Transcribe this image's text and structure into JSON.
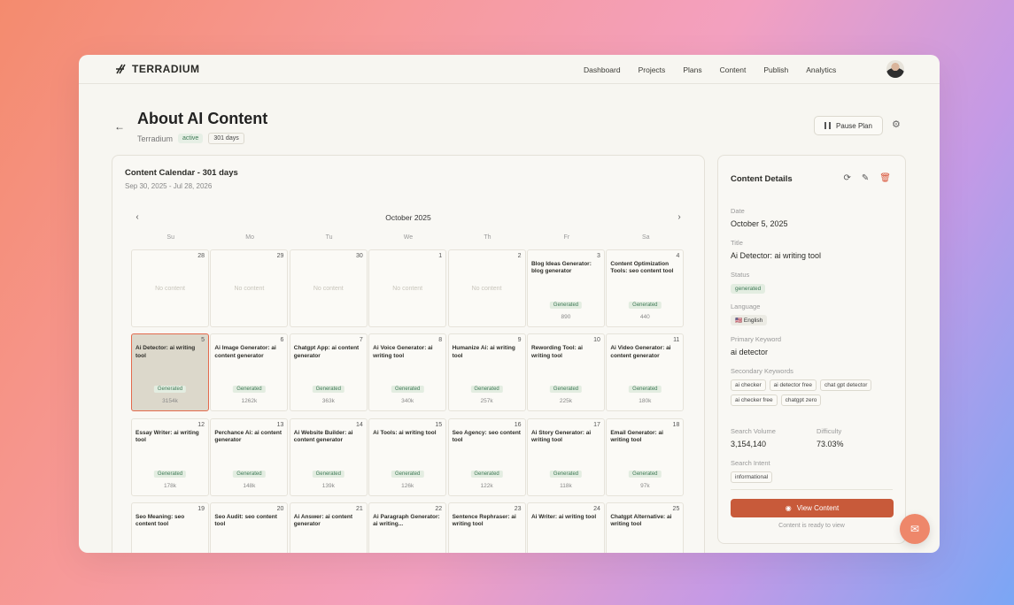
{
  "app": {
    "logo": "TERRADIUM"
  },
  "nav": [
    "Dashboard",
    "Projects",
    "Plans",
    "Content",
    "Publish",
    "Analytics"
  ],
  "page": {
    "back": "←",
    "title": "About AI Content",
    "project": "Terradium",
    "status": "active",
    "days": "301 days",
    "pause_label": "Pause Plan",
    "gear": "⚙"
  },
  "calendar": {
    "title": "Content Calendar - 301 days",
    "range": "Sep 30, 2025 - Jul 28, 2026",
    "month": "October 2025",
    "prev": "‹",
    "next": "›",
    "weekdays": [
      "Su",
      "Mo",
      "Tu",
      "We",
      "Th",
      "Fr",
      "Sa"
    ],
    "empty_label": "No content",
    "generated_label": "Generated",
    "cells": [
      {
        "day": "28",
        "title": "",
        "vol": "",
        "empty": true
      },
      {
        "day": "29",
        "title": "",
        "vol": "",
        "empty": true
      },
      {
        "day": "30",
        "title": "",
        "vol": "",
        "empty": true
      },
      {
        "day": "1",
        "title": "",
        "vol": "",
        "empty": true
      },
      {
        "day": "2",
        "title": "",
        "vol": "",
        "empty": true
      },
      {
        "day": "3",
        "title": "Blog Ideas Generator: blog generator",
        "vol": "890"
      },
      {
        "day": "4",
        "title": "Content Optimization Tools: seo content tool",
        "vol": "440"
      },
      {
        "day": "5",
        "title": "Ai Detector: ai writing tool",
        "vol": "3154k",
        "selected": true
      },
      {
        "day": "6",
        "title": "Ai Image Generator: ai content generator",
        "vol": "1262k"
      },
      {
        "day": "7",
        "title": "Chatgpt App: ai content generator",
        "vol": "363k"
      },
      {
        "day": "8",
        "title": "Ai Voice Generator: ai writing tool",
        "vol": "340k"
      },
      {
        "day": "9",
        "title": "Humanize Ai: ai writing tool",
        "vol": "257k"
      },
      {
        "day": "10",
        "title": "Rewording Tool: ai writing tool",
        "vol": "225k"
      },
      {
        "day": "11",
        "title": "Ai Video Generator: ai content generator",
        "vol": "180k"
      },
      {
        "day": "12",
        "title": "Essay Writer: ai writing tool",
        "vol": "178k"
      },
      {
        "day": "13",
        "title": "Perchance Ai: ai content generator",
        "vol": "148k"
      },
      {
        "day": "14",
        "title": "Ai Website Builder: ai content generator",
        "vol": "139k"
      },
      {
        "day": "15",
        "title": "Ai Tools: ai writing tool",
        "vol": "126k"
      },
      {
        "day": "16",
        "title": "Seo Agency: seo content tool",
        "vol": "122k"
      },
      {
        "day": "17",
        "title": "Ai Story Generator: ai writing tool",
        "vol": "118k"
      },
      {
        "day": "18",
        "title": "Email Generator: ai writing tool",
        "vol": "97k"
      },
      {
        "day": "19",
        "title": "Seo Meaning: seo content tool",
        "vol": ""
      },
      {
        "day": "20",
        "title": "Seo Audit: seo content tool",
        "vol": ""
      },
      {
        "day": "21",
        "title": "Ai Answer: ai content generator",
        "vol": ""
      },
      {
        "day": "22",
        "title": "Ai Paragraph Generator: ai writing...",
        "vol": ""
      },
      {
        "day": "23",
        "title": "Sentence Rephraser: ai writing tool",
        "vol": ""
      },
      {
        "day": "24",
        "title": "Ai Writer: ai writing tool",
        "vol": ""
      },
      {
        "day": "25",
        "title": "Chatgpt Alternative: ai writing tool",
        "vol": ""
      }
    ]
  },
  "details": {
    "title": "Content Details",
    "icons": {
      "refresh": "⟳",
      "edit": "✎",
      "delete": "🗑"
    },
    "date_label": "Date",
    "date": "October 5, 2025",
    "title_label": "Title",
    "content_title": "Ai Detector: ai writing tool",
    "status_label": "Status",
    "status": "generated",
    "language_label": "Language",
    "language": "🇺🇸 English",
    "primary_label": "Primary Keyword",
    "primary": "ai detector",
    "secondary_label": "Secondary Keywords",
    "secondary": [
      "ai checker",
      "ai detector free",
      "chat gpt detector",
      "ai checker free",
      "chatgpt zero"
    ],
    "volume_label": "Search Volume",
    "volume": "3,154,140",
    "difficulty_label": "Difficulty",
    "difficulty": "73.03%",
    "intent_label": "Search Intent",
    "intent": "informational",
    "view_label": "View Content",
    "ready": "Content is ready to view"
  },
  "colors": {
    "accent": "#c85a3a",
    "generated_bg": "#e3ede1",
    "generated_fg": "#3f7a56"
  }
}
